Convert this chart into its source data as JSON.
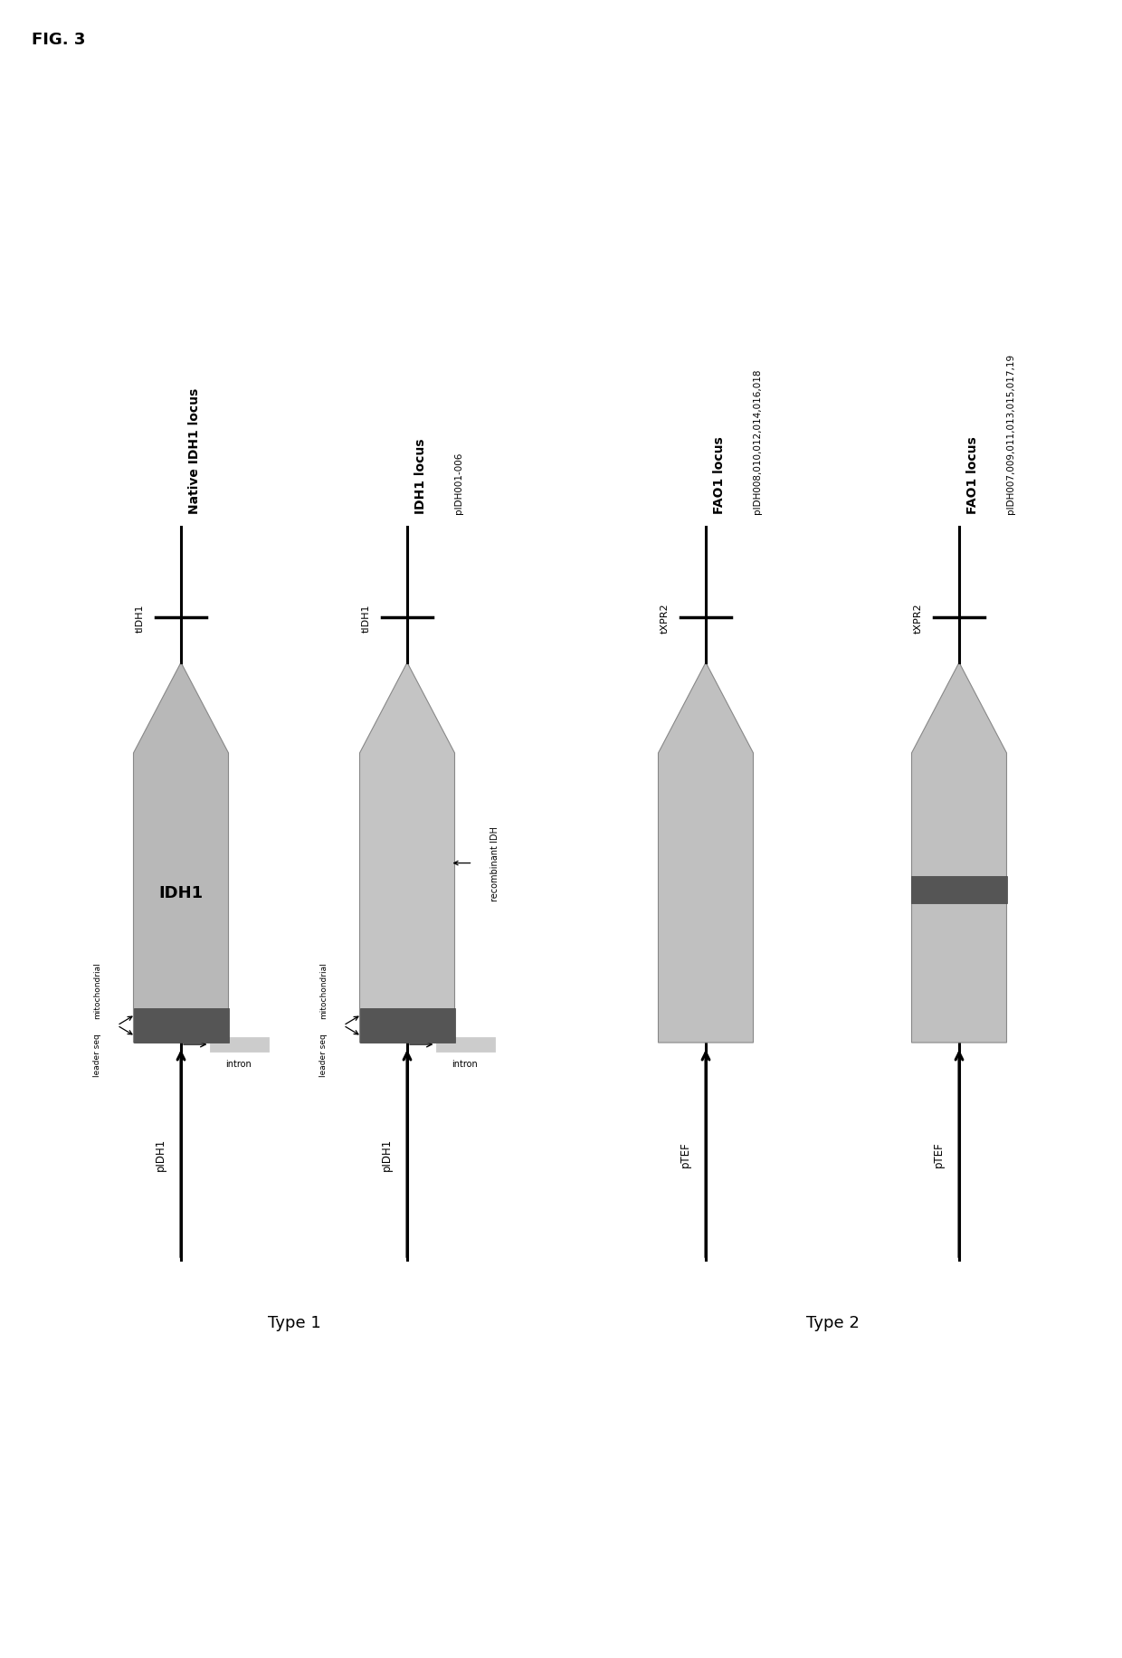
{
  "fig_label": "FIG. 3",
  "type1_label": "Type 1",
  "type2_label": "Type 2",
  "diagrams": [
    {
      "id": "native_idh1",
      "title_line1": "Native IDH1 locus",
      "title_line2": "",
      "promoter_label": "pIDH1",
      "terminator_label": "tIDH1",
      "gene_label": "IDH1",
      "has_mitochondrial": true,
      "has_intron": true,
      "mit_label1": "mitochondrial",
      "mit_label2": "leader seq",
      "intron_label": "intron",
      "recombinant_label": "",
      "gene_color": "#b8b8b8",
      "mit_color": "#606060",
      "intron_color": "#d4d4d4",
      "has_dark_band": false
    },
    {
      "id": "idh1_recombinant",
      "title_line1": "IDH1 locus",
      "title_line2": "pIDH001-006",
      "promoter_label": "pIDH1",
      "terminator_label": "tIDH1",
      "gene_label": "",
      "has_mitochondrial": true,
      "has_intron": true,
      "mit_label1": "mitochondrial",
      "mit_label2": "leader seq",
      "intron_label": "intron",
      "recombinant_label": "recombinant IDH",
      "gene_color": "#c4c4c4",
      "mit_color": "#606060",
      "intron_color": "#d4d4d4",
      "has_dark_band": false
    },
    {
      "id": "fao1_type2a",
      "title_line1": "FAO1 locus",
      "title_line2": "pIDH008,010,012,014,016,018",
      "promoter_label": "pTEF",
      "terminator_label": "tXPR2",
      "gene_label": "",
      "has_mitochondrial": false,
      "has_intron": false,
      "mit_label1": "",
      "mit_label2": "",
      "intron_label": "",
      "recombinant_label": "",
      "gene_color": "#c0c0c0",
      "mit_color": "#606060",
      "intron_color": "#d4d4d4",
      "has_dark_band": false
    },
    {
      "id": "fao1_type2b",
      "title_line1": "FAO1 locus",
      "title_line2": "pIDH007,009,011,013,015,017,19",
      "promoter_label": "pTEF",
      "terminator_label": "tXPR2",
      "gene_label": "",
      "has_mitochondrial": false,
      "has_intron": false,
      "mit_label1": "",
      "mit_label2": "",
      "intron_label": "",
      "recombinant_label": "",
      "gene_color": "#c0c0c0",
      "mit_color": "#606060",
      "intron_color": "#d4d4d4",
      "has_dark_band": true
    }
  ],
  "background_color": "#ffffff",
  "line_color": "#000000",
  "text_color": "#000000",
  "gray_light": "#cccccc",
  "gray_medium": "#a0a0a0",
  "gray_dark": "#555555"
}
